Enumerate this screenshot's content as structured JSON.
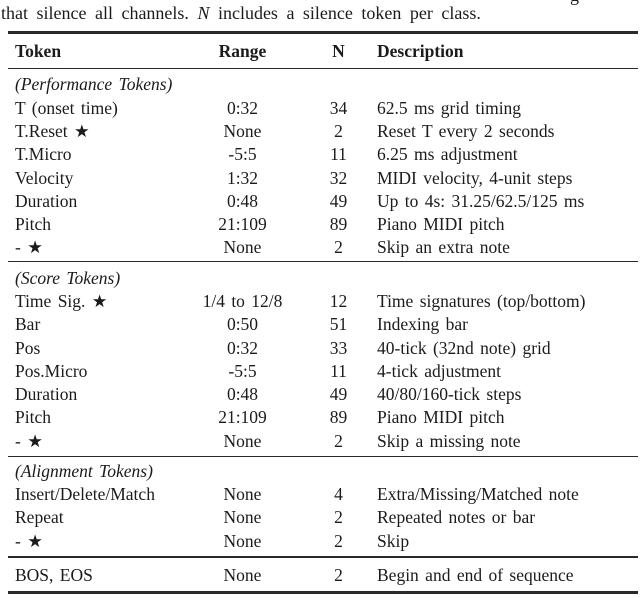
{
  "colors": {
    "text": "#1b1b1b",
    "rule": "#2a2a2a",
    "background": "#ffffff"
  },
  "caption": {
    "top_fragment": "g",
    "prefix": "that silence all channels.",
    "math_symbol": "N",
    "suffix": "includes a silence token per class."
  },
  "table": {
    "header": {
      "token": "Token",
      "range": "Range",
      "n": "N",
      "description": "Description"
    },
    "rows": [
      {
        "label": "(Performance Tokens)"
      },
      {
        "token": "T (onset time)",
        "range": "0:32",
        "n": "34",
        "desc": "62.5 ms grid timing"
      },
      {
        "token": "T.Reset ★",
        "range": "None",
        "n": "2",
        "desc": "Reset T every 2 seconds"
      },
      {
        "token": "T.Micro",
        "range": "-5:5",
        "n": "11",
        "desc": "6.25 ms adjustment"
      },
      {
        "token": "Velocity",
        "range": "1:32",
        "n": "32",
        "desc": "MIDI velocity, 4-unit steps"
      },
      {
        "token": "Duration",
        "range": "0:48",
        "n": "49",
        "desc": "Up to 4s: 31.25/62.5/125 ms"
      },
      {
        "token": "Pitch",
        "range": "21:109",
        "n": "89",
        "desc": "Piano MIDI pitch"
      },
      {
        "token": "- ★",
        "range": "None",
        "n": "2",
        "desc": "Skip an extra note"
      },
      {
        "label": "(Score Tokens)"
      },
      {
        "token": "Time Sig. ★",
        "range": "1/4 to 12/8",
        "n": "12",
        "desc": "Time signatures (top/bottom)"
      },
      {
        "token": "Bar",
        "range": "0:50",
        "n": "51",
        "desc": "Indexing bar"
      },
      {
        "token": "Pos",
        "range": "0:32",
        "n": "33",
        "desc": "40-tick (32nd note) grid"
      },
      {
        "token": "Pos.Micro",
        "range": "-5:5",
        "n": "11",
        "desc": "4-tick adjustment"
      },
      {
        "token": "Duration",
        "range": "0:48",
        "n": "49",
        "desc": "40/80/160-tick steps"
      },
      {
        "token": "Pitch",
        "range": "21:109",
        "n": "89",
        "desc": "Piano MIDI pitch"
      },
      {
        "token": "- ★",
        "range": "None",
        "n": "2",
        "desc": "Skip a missing note"
      },
      {
        "label": "(Alignment Tokens)"
      },
      {
        "token": "Insert/Delete/Match",
        "range": "None",
        "n": "4",
        "desc": "Extra/Missing/Matched note"
      },
      {
        "token": "Repeat",
        "range": "None",
        "n": "2",
        "desc": "Repeated notes or bar"
      },
      {
        "token": "- ★",
        "range": "None",
        "n": "2",
        "desc": "Skip"
      },
      {
        "token": "BOS, EOS",
        "range": "None",
        "n": "2",
        "desc": "Begin and end of sequence"
      }
    ]
  }
}
